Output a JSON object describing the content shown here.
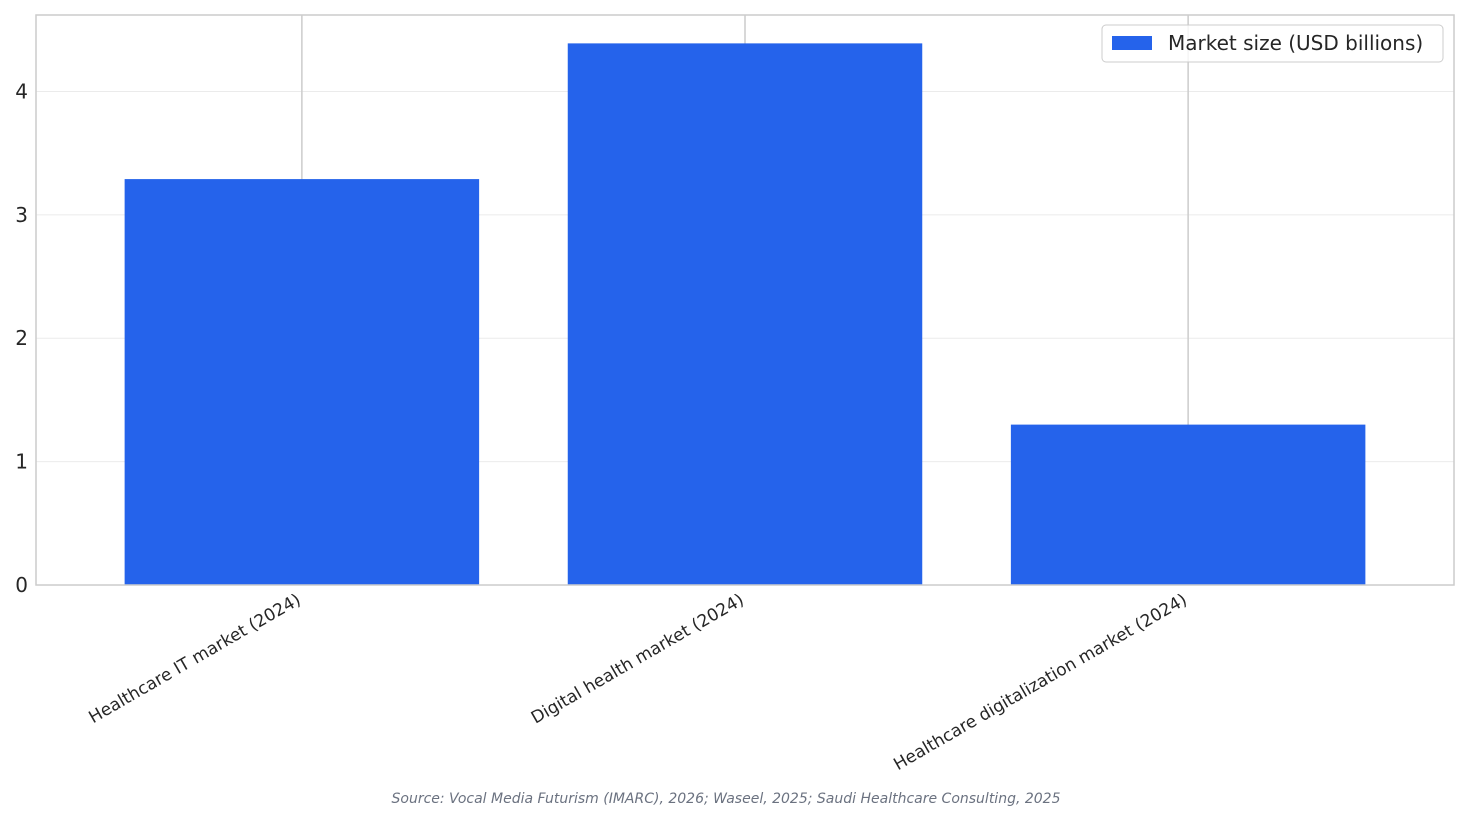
{
  "chart_data": {
    "type": "bar",
    "categories": [
      "Healthcare IT market (2024)",
      "Digital health market (2024)",
      "Healthcare digitalization market (2024)"
    ],
    "series": [
      {
        "name": "Market size (USD billions)",
        "values": [
          3.29,
          4.39,
          1.3
        ],
        "color": "#2563eb"
      }
    ],
    "title": "",
    "xlabel": "",
    "ylabel": "",
    "ylim": [
      0,
      4.62
    ],
    "yticks": [
      0,
      1,
      2,
      3,
      4
    ],
    "grid": true,
    "legend_position": "top-right"
  },
  "source": "Source: Vocal Media Futurism (IMARC), 2026; Waseel, 2025; Saudi Healthcare Consulting, 2025"
}
